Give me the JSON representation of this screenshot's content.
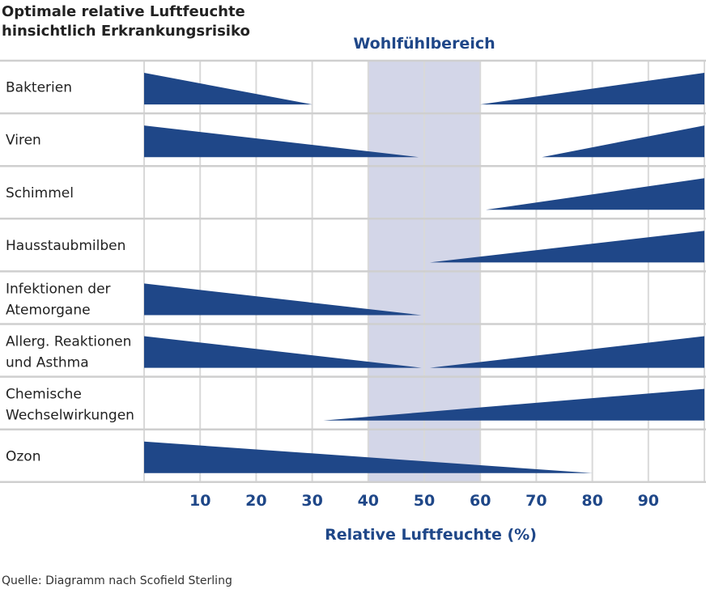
{
  "chart_data": {
    "type": "area",
    "title": [
      "Optimale relative Luftfeuchte",
      "hinsichtlich Erkrankungsrisiko"
    ],
    "band": {
      "label": "Wohlfühlbereich",
      "from": 40,
      "to": 60
    },
    "xlabel": "Relative Luftfeuchte (%)",
    "xlim": [
      0,
      100
    ],
    "xticks": [
      10,
      20,
      30,
      40,
      50,
      60,
      70,
      80,
      90
    ],
    "grid": true,
    "rows": [
      {
        "label": [
          "Bakterien"
        ],
        "segments": [
          {
            "from": 0,
            "to": 30,
            "peak": "left"
          },
          {
            "from": 60,
            "to": 100,
            "peak": "right"
          }
        ]
      },
      {
        "label": [
          "Viren"
        ],
        "segments": [
          {
            "from": 0,
            "to": 49,
            "peak": "left"
          },
          {
            "from": 71,
            "to": 100,
            "peak": "right"
          }
        ]
      },
      {
        "label": [
          "Schimmel"
        ],
        "segments": [
          {
            "from": 61,
            "to": 100,
            "peak": "right"
          }
        ]
      },
      {
        "label": [
          "Hausstaubmilben"
        ],
        "segments": [
          {
            "from": 51,
            "to": 100,
            "peak": "right"
          }
        ]
      },
      {
        "label": [
          "Infektionen der",
          "Atemorgane"
        ],
        "segments": [
          {
            "from": 0,
            "to": 49.5,
            "peak": "left"
          }
        ]
      },
      {
        "label": [
          "Allerg. Reaktionen",
          "und Asthma"
        ],
        "segments": [
          {
            "from": 0,
            "to": 49.5,
            "peak": "left"
          },
          {
            "from": 51,
            "to": 100,
            "peak": "right"
          }
        ]
      },
      {
        "label": [
          "Chemische",
          "Wechselwirkungen"
        ],
        "segments": [
          {
            "from": 32,
            "to": 100,
            "peak": "right"
          }
        ]
      },
      {
        "label": [
          "Ozon"
        ],
        "segments": [
          {
            "from": 0,
            "to": 80,
            "peak": "left"
          }
        ]
      }
    ],
    "source": "Quelle: Diagramm nach Scofield Sterling"
  },
  "colors": {
    "fill": "#1f4788",
    "band": "#d3d6e8",
    "grid": "#d9d9d9",
    "accent": "#1f4788"
  }
}
